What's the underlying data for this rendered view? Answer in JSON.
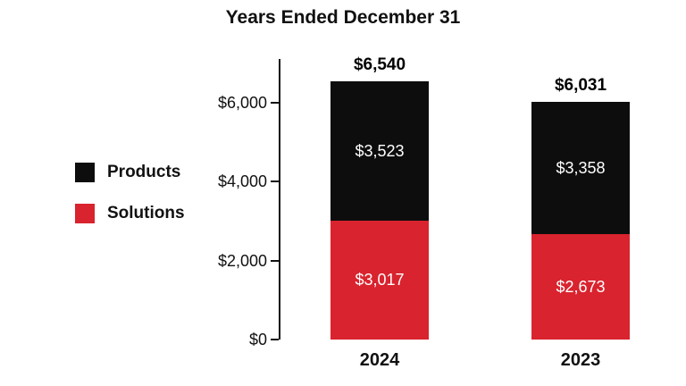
{
  "chart_data": {
    "type": "bar",
    "stacked": true,
    "title": "Years Ended December 31",
    "categories": [
      "2024",
      "2023"
    ],
    "series": [
      {
        "name": "Products",
        "color": "#0d0d0d",
        "values": [
          3523,
          3358
        ],
        "value_labels": [
          "$3,523",
          "$3,358"
        ]
      },
      {
        "name": "Solutions",
        "color": "#d9232e",
        "values": [
          3017,
          2673
        ],
        "value_labels": [
          "$3,017",
          "$2,673"
        ]
      }
    ],
    "totals": [
      6540,
      6031
    ],
    "total_labels": [
      "$6,540",
      "$6,031"
    ],
    "y_ticks": [
      "$0",
      "$2,000",
      "$4,000",
      "$6,000"
    ],
    "y_tick_values": [
      0,
      2000,
      4000,
      6000
    ],
    "ylim": [
      0,
      6540
    ],
    "grid": false,
    "legend_position": "left",
    "legend": [
      "Products",
      "Solutions"
    ]
  }
}
